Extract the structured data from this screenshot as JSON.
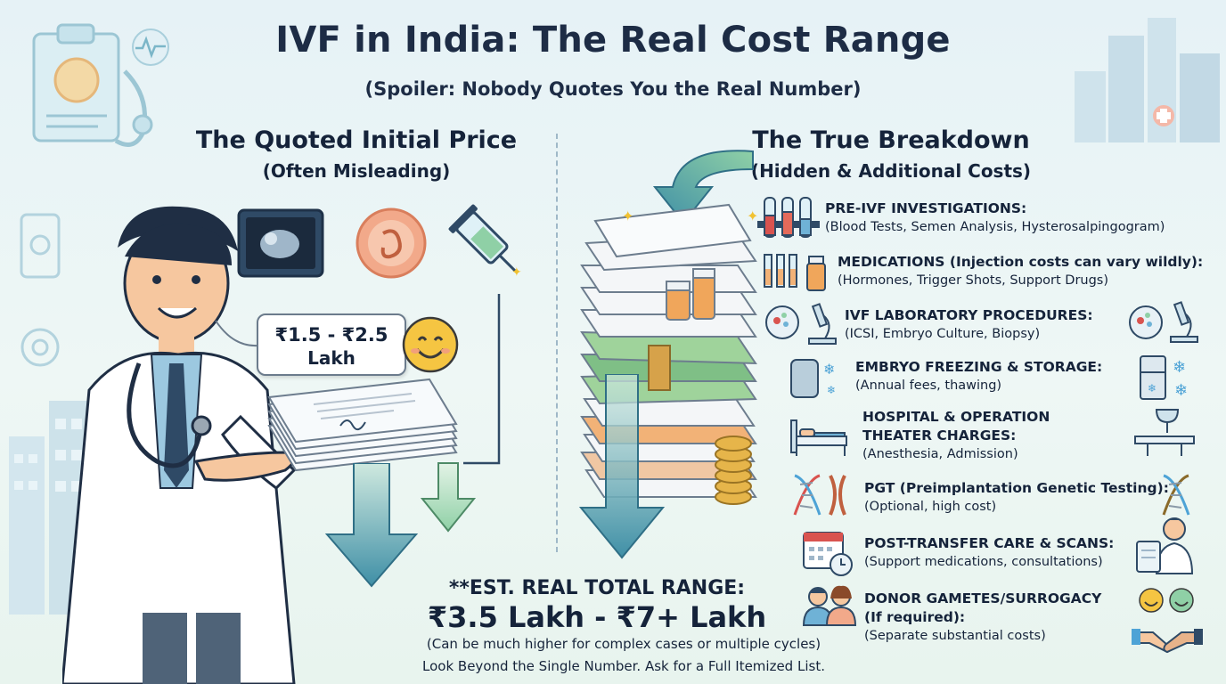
{
  "title": "IVF in India: The Real Cost Range",
  "subtitle": "(Spoiler: Nobody Quotes You the Real Number)",
  "left": {
    "title": "The Quoted Initial Price",
    "subtitle": "(Often Misleading)",
    "price_line1": "₹1.5 - ₹2.5",
    "price_line2": "Lakh"
  },
  "right": {
    "title": "The True Breakdown",
    "subtitle": "(Hidden & Additional Costs)"
  },
  "items": [
    {
      "heading": "PRE-IVF INVESTIGATIONS:",
      "detail": "(Blood Tests, Semen Analysis, Hysterosalpingogram)"
    },
    {
      "heading": "MEDICATIONS (Injection costs can vary wildly):",
      "detail": "(Hormones, Trigger Shots, Support Drugs)"
    },
    {
      "heading": "IVF LABORATORY PROCEDURES:",
      "detail": "(ICSI, Embryo Culture, Biopsy)"
    },
    {
      "heading": "EMBRYO FREEZING & STORAGE:",
      "detail": "(Annual fees, thawing)"
    },
    {
      "heading": "HOSPITAL & OPERATION",
      "heading2": "THEATER CHARGES:",
      "detail": "(Anesthesia, Admission)"
    },
    {
      "heading": "PGT (Preimplantation Genetic Testing):",
      "detail": "(Optional, high cost)"
    },
    {
      "heading": "POST-TRANSFER CARE & SCANS:",
      "detail": "(Support medications, consultations)"
    },
    {
      "heading": "DONOR GAMETES/SURROGACY",
      "heading2": "(If required):",
      "detail": "(Separate substantial costs)"
    }
  ],
  "summary": {
    "label": "**EST. REAL TOTAL RANGE:",
    "value": "₹3.5 Lakh - ₹7+ Lakh",
    "note": "(Can be much higher for complex cases or multiple cycles)",
    "advice": "Look Beyond the Single Number. Ask for a Full Itemized List."
  },
  "icons": [
    "clipboard-stethoscope-icon",
    "heartbeat-icon",
    "city-skyline-icon",
    "doctor-illustration",
    "ultrasound-icon",
    "embryo-icon",
    "syringe-icon",
    "smiley-icon",
    "paper-stack-icon",
    "arrow-down-icon",
    "test-tubes-icon",
    "vials-syringes-icon",
    "petri-dish-icon",
    "microscope-icon",
    "freezer-icon",
    "snowflake-icon",
    "hospital-bed-icon",
    "operation-lamp-icon",
    "dna-icon",
    "calendar-clock-icon",
    "doctor-clipboard-icon",
    "couple-icon",
    "handshake-icon"
  ],
  "colors": {
    "arrow": "#3f8fa6",
    "arrow_light": "#8fd0a6",
    "title": "#1d2c45",
    "price_tag_border": "#6b7b8c",
    "smiley": "#f5c542"
  }
}
